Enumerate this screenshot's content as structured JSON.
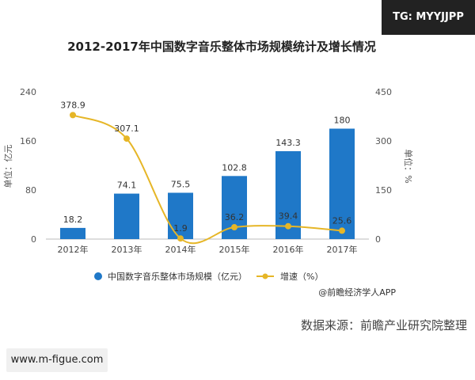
{
  "title": "2012-2017年中国数字音乐整体市场规模统计及增长情况",
  "top_tag": "TG: MYYJJPP",
  "bottom_tag": "www.m-figue.com",
  "source_text": "数据来源：前瞻产业研究院整理",
  "credit": "@前瞻经济学人APP",
  "colors": {
    "bar": "#1f78c8",
    "line": "#e6b627"
  },
  "chart_data": {
    "type": "bar",
    "categories": [
      "2012年",
      "2013年",
      "2014年",
      "2015年",
      "2016年",
      "2017年"
    ],
    "series": [
      {
        "name": "中国数字音乐整体市场规模（亿元）",
        "type": "bar",
        "axis": "left",
        "values": [
          18.2,
          74.1,
          75.5,
          102.8,
          143.3,
          180
        ]
      },
      {
        "name": "增速（%）",
        "type": "line",
        "axis": "right",
        "values": [
          378.9,
          307.1,
          1.9,
          36.2,
          39.4,
          25.6
        ]
      }
    ],
    "ylabel_left": "单位：亿元",
    "ylabel_right": "单位：%",
    "ylim_left": [
      0,
      240
    ],
    "ylim_right": [
      0,
      450
    ],
    "yticks_left": [
      "0",
      "80",
      "160",
      "240"
    ],
    "yticks_right": [
      "0",
      "150",
      "300",
      "450"
    ],
    "grid": false,
    "legend_position": "bottom"
  }
}
